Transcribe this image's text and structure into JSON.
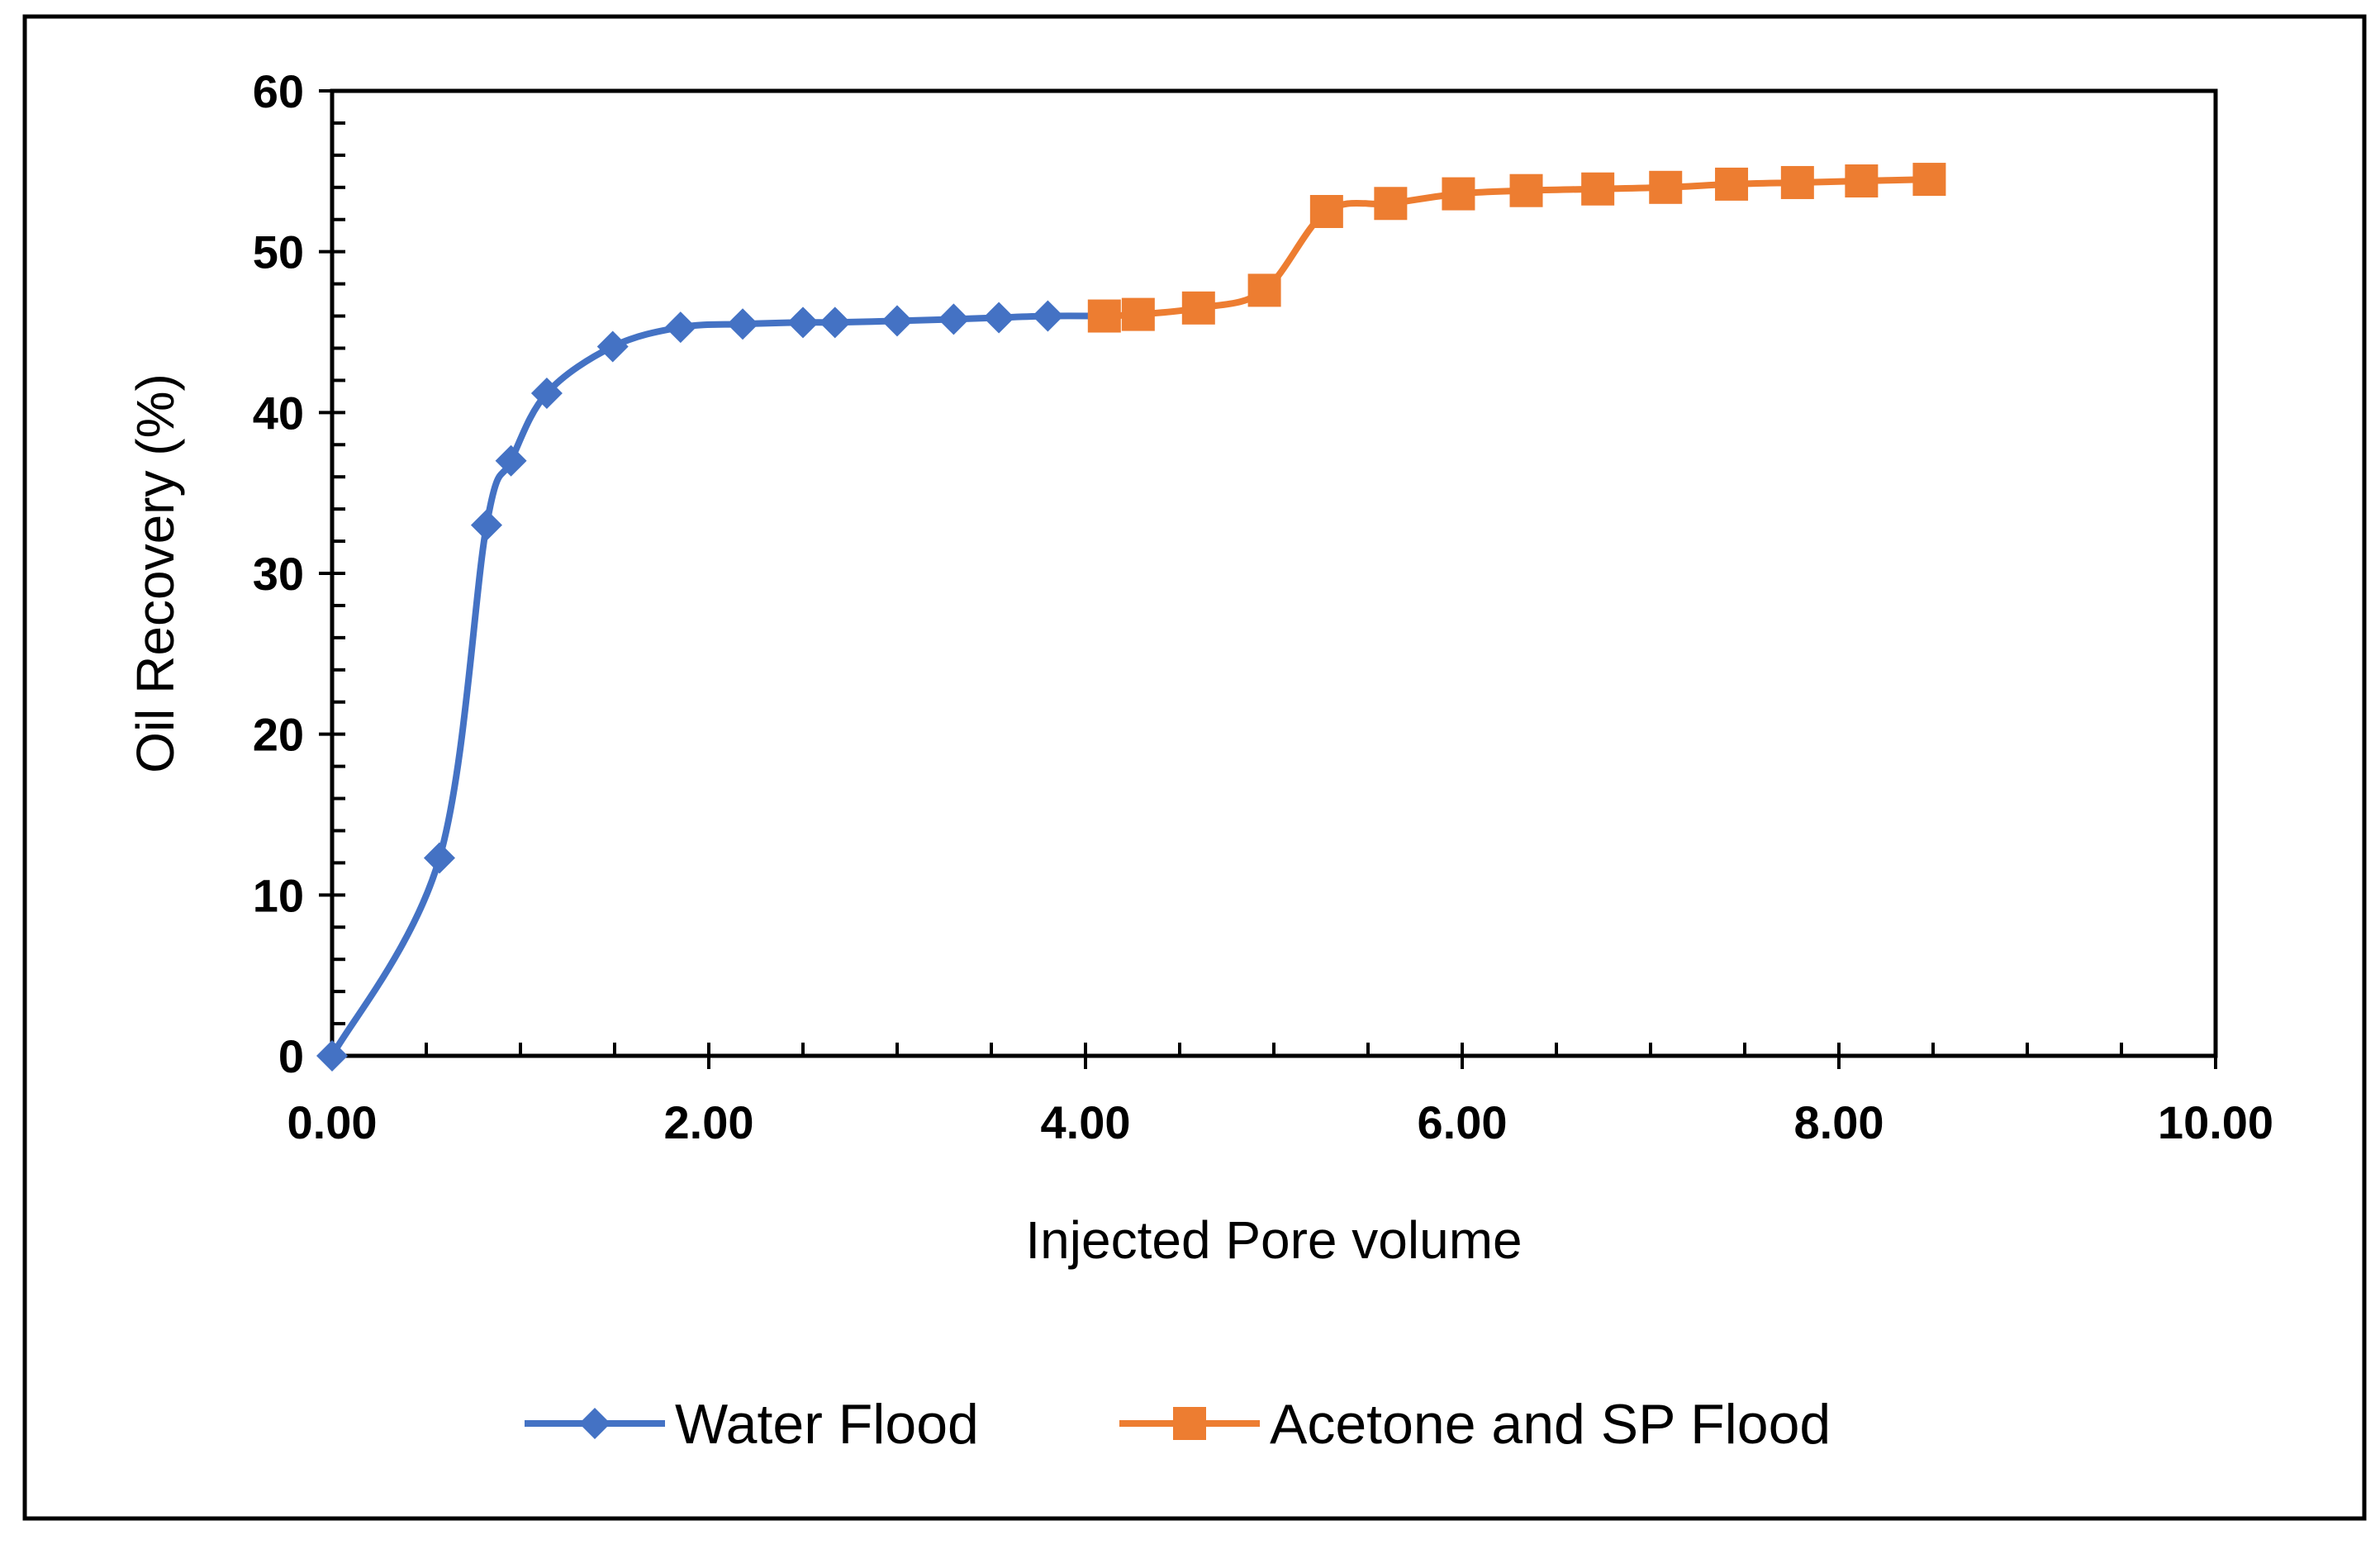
{
  "chart_data": {
    "type": "line",
    "title": "",
    "xlabel": "Injected Pore volume",
    "ylabel": "Oil Recovery (%)",
    "xlim": [
      0,
      10
    ],
    "ylim": [
      0,
      60
    ],
    "x_ticks": [
      "0.00",
      "2.00",
      "4.00",
      "6.00",
      "8.00",
      "10.00"
    ],
    "y_ticks": [
      "0",
      "10",
      "20",
      "30",
      "40",
      "50",
      "60"
    ],
    "grid": false,
    "legend_position": "bottom",
    "series": [
      {
        "name": "Water Flood",
        "color": "#4472C4",
        "marker": "diamond",
        "x": [
          0.0,
          0.57,
          0.82,
          0.95,
          1.14,
          1.49,
          1.85,
          2.18,
          2.5,
          2.67,
          3.0,
          3.3,
          3.54,
          3.8,
          4.1
        ],
        "y": [
          0.0,
          12.3,
          33.0,
          37.0,
          41.2,
          44.1,
          45.3,
          45.5,
          45.6,
          45.6,
          45.7,
          45.8,
          45.9,
          46.0,
          46.0
        ]
      },
      {
        "name": "Acetone and SP Flood",
        "color": "#ED7D31",
        "marker": "square",
        "x": [
          4.1,
          4.28,
          4.6,
          4.95,
          5.28,
          5.62,
          5.98,
          6.34,
          6.72,
          7.08,
          7.43,
          7.78,
          8.12,
          8.48
        ],
        "y": [
          46.0,
          46.1,
          46.5,
          47.6,
          52.5,
          53.0,
          53.6,
          53.8,
          53.9,
          54.0,
          54.2,
          54.3,
          54.4,
          54.5
        ]
      }
    ]
  }
}
